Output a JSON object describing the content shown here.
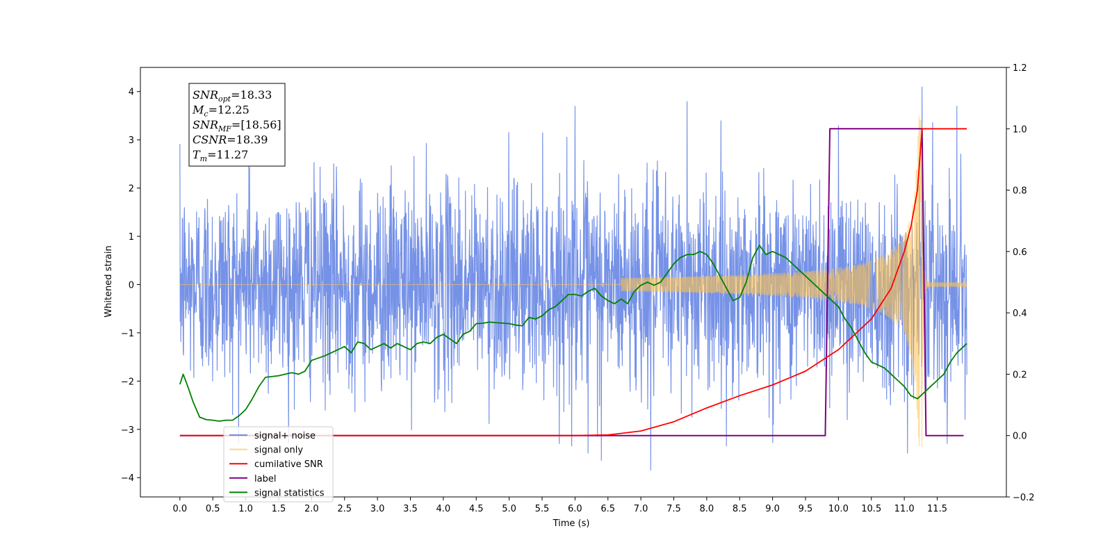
{
  "chart_data": {
    "type": "line",
    "xlabel": "Time (s)",
    "ylabel": "Whitened strain",
    "xlim": [
      -0.6,
      12.55
    ],
    "ylim": [
      -4.4,
      4.5
    ],
    "y2lim": [
      -0.2,
      1.2
    ],
    "grid": false,
    "legend_position": "lower-left",
    "x_ticks": [
      "0.0",
      "0.5",
      "1.0",
      "1.5",
      "2.0",
      "2.5",
      "3.0",
      "3.5",
      "4.0",
      "4.5",
      "5.0",
      "5.5",
      "6.0",
      "6.5",
      "7.0",
      "7.5",
      "8.0",
      "8.5",
      "9.0",
      "9.5",
      "10.0",
      "10.5",
      "11.0",
      "11.5"
    ],
    "y_ticks": [
      "4",
      "3",
      "2",
      "1",
      "0",
      "−1",
      "−2",
      "−3",
      "−4"
    ],
    "y2_ticks": [
      "1.2",
      "1.0",
      "0.8",
      "0.6",
      "0.4",
      "0.2",
      "0.0",
      "−0.2"
    ],
    "annotation": {
      "lines": [
        {
          "base": "SNR",
          "sub": "opt",
          "value": "=18.33"
        },
        {
          "base": "M",
          "sub": "c",
          "value": "=12.25"
        },
        {
          "base": "SNR",
          "sub": "MF",
          "value": "=[18.56]"
        },
        {
          "base": "CSNR",
          "sub": "",
          "value": "=18.39"
        },
        {
          "base": "T",
          "sub": "m",
          "value": "=11.27"
        }
      ]
    },
    "series": [
      {
        "name": "signal+ noise",
        "color": "#6f8ce6",
        "axis": "left",
        "description": "whitened noise, amplitude approx ±2.5 with spikes to ±3.8, x range 0 to 11.95",
        "spikes": [
          {
            "x": 6.0,
            "y": 3.7
          },
          {
            "x": 7.7,
            "y": 3.8
          },
          {
            "x": 11.27,
            "y": 4.1
          },
          {
            "x": 1.05,
            "y": 3.3
          },
          {
            "x": 10.0,
            "y": 3.3
          },
          {
            "x": 11.8,
            "y": 3.7
          },
          {
            "x": 6.2,
            "y": -3.5
          },
          {
            "x": 6.4,
            "y": -3.65
          },
          {
            "x": 7.15,
            "y": -3.85
          },
          {
            "x": 8.3,
            "y": -3.35
          },
          {
            "x": 11.05,
            "y": -3.5
          },
          {
            "x": 5.95,
            "y": -3.35
          }
        ]
      },
      {
        "name": "signal only",
        "color": "#ffc34d",
        "axis": "left",
        "description": "chirp waveform, amplitude grows from ~0 at 6.7 s to ~3.5 at 11.27 s"
      },
      {
        "name": "cumilative SNR",
        "color": "#ff0000",
        "axis": "right",
        "points": [
          [
            0.0,
            0.0
          ],
          [
            6.0,
            0.0
          ],
          [
            6.5,
            0.002
          ],
          [
            7.0,
            0.015
          ],
          [
            7.5,
            0.045
          ],
          [
            8.0,
            0.09
          ],
          [
            8.5,
            0.13
          ],
          [
            9.0,
            0.165
          ],
          [
            9.5,
            0.21
          ],
          [
            10.0,
            0.28
          ],
          [
            10.5,
            0.38
          ],
          [
            10.8,
            0.48
          ],
          [
            11.0,
            0.6
          ],
          [
            11.1,
            0.68
          ],
          [
            11.2,
            0.8
          ],
          [
            11.27,
            1.0
          ],
          [
            11.95,
            1.0
          ]
        ]
      },
      {
        "name": "label",
        "color": "#800080",
        "axis": "right",
        "points": [
          [
            0.0,
            0.0
          ],
          [
            9.8,
            0.0
          ],
          [
            9.87,
            1.0
          ],
          [
            11.27,
            1.0
          ],
          [
            11.33,
            0.0
          ],
          [
            11.9,
            0.0
          ]
        ]
      },
      {
        "name": "signal statistics",
        "color": "#008000",
        "axis": "right",
        "points": [
          [
            0.0,
            0.167
          ],
          [
            0.05,
            0.2
          ],
          [
            0.12,
            0.16
          ],
          [
            0.2,
            0.11
          ],
          [
            0.3,
            0.06
          ],
          [
            0.4,
            0.052
          ],
          [
            0.5,
            0.05
          ],
          [
            0.6,
            0.047
          ],
          [
            0.7,
            0.05
          ],
          [
            0.8,
            0.05
          ],
          [
            0.9,
            0.065
          ],
          [
            1.0,
            0.085
          ],
          [
            1.1,
            0.12
          ],
          [
            1.2,
            0.16
          ],
          [
            1.3,
            0.19
          ],
          [
            1.5,
            0.195
          ],
          [
            1.6,
            0.2
          ],
          [
            1.7,
            0.205
          ],
          [
            1.8,
            0.2
          ],
          [
            1.9,
            0.21
          ],
          [
            2.0,
            0.245
          ],
          [
            2.2,
            0.26
          ],
          [
            2.3,
            0.27
          ],
          [
            2.4,
            0.28
          ],
          [
            2.5,
            0.29
          ],
          [
            2.6,
            0.27
          ],
          [
            2.7,
            0.305
          ],
          [
            2.8,
            0.3
          ],
          [
            2.9,
            0.28
          ],
          [
            3.0,
            0.29
          ],
          [
            3.1,
            0.3
          ],
          [
            3.2,
            0.285
          ],
          [
            3.3,
            0.3
          ],
          [
            3.4,
            0.29
          ],
          [
            3.5,
            0.28
          ],
          [
            3.6,
            0.3
          ],
          [
            3.7,
            0.305
          ],
          [
            3.8,
            0.3
          ],
          [
            3.9,
            0.32
          ],
          [
            4.0,
            0.33
          ],
          [
            4.1,
            0.315
          ],
          [
            4.2,
            0.3
          ],
          [
            4.3,
            0.33
          ],
          [
            4.4,
            0.34
          ],
          [
            4.5,
            0.365
          ],
          [
            4.6,
            0.366
          ],
          [
            4.7,
            0.37
          ],
          [
            4.8,
            0.368
          ],
          [
            5.0,
            0.365
          ],
          [
            5.1,
            0.36
          ],
          [
            5.2,
            0.358
          ],
          [
            5.3,
            0.385
          ],
          [
            5.4,
            0.38
          ],
          [
            5.5,
            0.39
          ],
          [
            5.6,
            0.41
          ],
          [
            5.7,
            0.42
          ],
          [
            5.8,
            0.44
          ],
          [
            5.9,
            0.46
          ],
          [
            6.0,
            0.46
          ],
          [
            6.1,
            0.455
          ],
          [
            6.2,
            0.47
          ],
          [
            6.3,
            0.48
          ],
          [
            6.4,
            0.455
          ],
          [
            6.5,
            0.44
          ],
          [
            6.6,
            0.43
          ],
          [
            6.7,
            0.445
          ],
          [
            6.8,
            0.43
          ],
          [
            6.9,
            0.47
          ],
          [
            7.0,
            0.49
          ],
          [
            7.1,
            0.5
          ],
          [
            7.2,
            0.49
          ],
          [
            7.3,
            0.5
          ],
          [
            7.4,
            0.53
          ],
          [
            7.5,
            0.56
          ],
          [
            7.6,
            0.58
          ],
          [
            7.7,
            0.59
          ],
          [
            7.8,
            0.59
          ],
          [
            7.9,
            0.6
          ],
          [
            8.0,
            0.59
          ],
          [
            8.1,
            0.56
          ],
          [
            8.2,
            0.52
          ],
          [
            8.3,
            0.48
          ],
          [
            8.4,
            0.44
          ],
          [
            8.5,
            0.45
          ],
          [
            8.6,
            0.5
          ],
          [
            8.7,
            0.58
          ],
          [
            8.8,
            0.62
          ],
          [
            8.9,
            0.59
          ],
          [
            9.0,
            0.6
          ],
          [
            9.2,
            0.58
          ],
          [
            9.4,
            0.54
          ],
          [
            9.6,
            0.5
          ],
          [
            9.8,
            0.46
          ],
          [
            9.9,
            0.44
          ],
          [
            10.0,
            0.42
          ],
          [
            10.1,
            0.38
          ],
          [
            10.2,
            0.35
          ],
          [
            10.3,
            0.31
          ],
          [
            10.4,
            0.27
          ],
          [
            10.5,
            0.24
          ],
          [
            10.6,
            0.23
          ],
          [
            10.7,
            0.22
          ],
          [
            10.8,
            0.2
          ],
          [
            10.9,
            0.18
          ],
          [
            11.0,
            0.16
          ],
          [
            11.1,
            0.13
          ],
          [
            11.2,
            0.12
          ],
          [
            11.3,
            0.14
          ],
          [
            11.4,
            0.16
          ],
          [
            11.5,
            0.18
          ],
          [
            11.6,
            0.2
          ],
          [
            11.7,
            0.24
          ],
          [
            11.8,
            0.27
          ],
          [
            11.9,
            0.29
          ],
          [
            11.95,
            0.3
          ]
        ]
      }
    ]
  }
}
